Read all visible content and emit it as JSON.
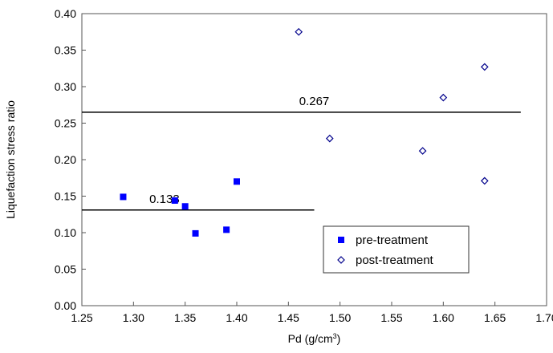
{
  "chart_data": {
    "type": "scatter",
    "xlabel": "Pd (g/cm",
    "xlabel_superscript": "3",
    "xlabel_suffix": ")",
    "ylabel": "Liquefaction stress ratio",
    "xlim": [
      1.25,
      1.7
    ],
    "ylim": [
      0.0,
      0.4
    ],
    "x_ticks": [
      "1.25",
      "1.30",
      "1.35",
      "1.40",
      "1.45",
      "1.50",
      "1.55",
      "1.60",
      "1.65",
      "1.70"
    ],
    "x_tick_values": [
      1.25,
      1.3,
      1.35,
      1.4,
      1.45,
      1.5,
      1.55,
      1.6,
      1.65,
      1.7
    ],
    "y_ticks": [
      "0.00",
      "0.05",
      "0.10",
      "0.15",
      "0.20",
      "0.25",
      "0.30",
      "0.35",
      "0.40"
    ],
    "y_tick_values": [
      0.0,
      0.05,
      0.1,
      0.15,
      0.2,
      0.25,
      0.3,
      0.35,
      0.4
    ],
    "grid": false,
    "legend_position": "bottom-right",
    "series": [
      {
        "name": "pre-treatment",
        "marker": "filled-square",
        "color": "#0000ff",
        "x": [
          1.29,
          1.34,
          1.35,
          1.36,
          1.39,
          1.4
        ],
        "y": [
          0.149,
          0.144,
          0.136,
          0.099,
          0.104,
          0.17
        ]
      },
      {
        "name": "post-treatment",
        "marker": "open-diamond",
        "color": "#00008b",
        "x": [
          1.46,
          1.49,
          1.58,
          1.6,
          1.64,
          1.64
        ],
        "y": [
          0.375,
          0.229,
          0.212,
          0.285,
          0.327,
          0.171
        ]
      }
    ],
    "reference_lines": [
      {
        "label": "0.267",
        "y": 0.265,
        "x_start": 1.25,
        "x_end": 1.675,
        "label_x": 1.475
      },
      {
        "label": "0.133",
        "y": 0.131,
        "x_start": 1.25,
        "x_end": 1.475,
        "label_x": 1.33
      }
    ]
  }
}
